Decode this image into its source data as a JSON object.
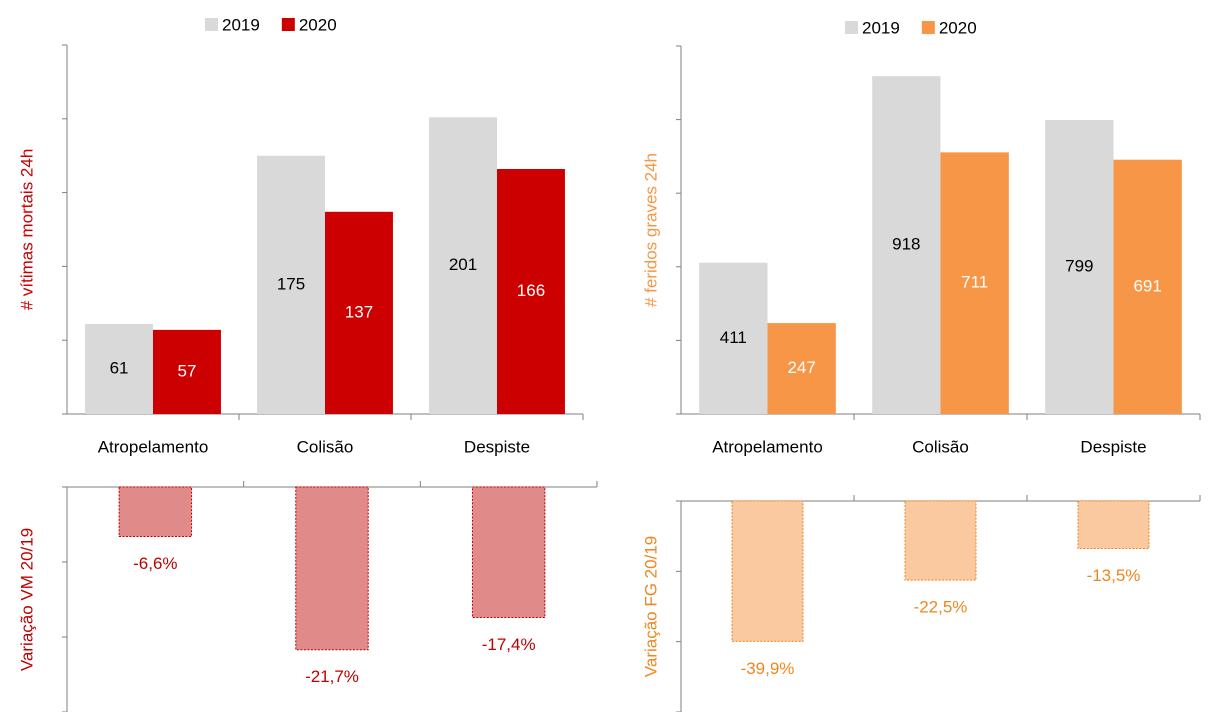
{
  "chart_data": [
    {
      "type": "bar",
      "y_label": "# vítimas mortais 24h",
      "categories": [
        "Atropelamento",
        "Colisão",
        "Despiste"
      ],
      "series": [
        {
          "name": "2019",
          "color": "#d9d9d9",
          "values": [
            61,
            175,
            201
          ]
        },
        {
          "name": "2020",
          "color": "#cc0000",
          "values": [
            57,
            137,
            166
          ]
        }
      ],
      "ylim": [
        0,
        250
      ],
      "yticks": [
        0,
        50,
        100,
        150,
        200,
        250
      ],
      "label_color": "#cc0000"
    },
    {
      "type": "bar",
      "y_label": "# feridos graves 24h",
      "categories": [
        "Atropelamento",
        "Colisão",
        "Despiste"
      ],
      "series": [
        {
          "name": "2019",
          "color": "#d9d9d9",
          "values": [
            411,
            918,
            799
          ]
        },
        {
          "name": "2020",
          "color": "#f79646",
          "values": [
            247,
            711,
            691
          ]
        }
      ],
      "ylim": [
        0,
        1000
      ],
      "yticks": [
        0,
        200,
        400,
        600,
        800,
        1000
      ],
      "label_color": "#f79646"
    },
    {
      "type": "bar",
      "y_label": "Variação VM 20/19",
      "values": [
        -6.6,
        -21.7,
        -17.4
      ],
      "value_labels": [
        "-6,6%",
        "-21,7%",
        "-17,4%"
      ],
      "color": "#e08a8a",
      "border_color": "#c00000",
      "label_color": "#c00000",
      "ylim": [
        -30,
        0
      ],
      "yticks": [
        -30,
        -20,
        -10,
        0
      ]
    },
    {
      "type": "bar",
      "y_label": "Variação FG 20/19",
      "values": [
        -39.9,
        -22.5,
        -13.5
      ],
      "value_labels": [
        "-39,9%",
        "-22,5%",
        "-13,5%"
      ],
      "color": "#fac9a0",
      "border_color": "#f0861e",
      "label_color": "#f0861e",
      "ylim": [
        -60,
        0
      ],
      "yticks": [
        -60,
        -40,
        -20,
        0
      ]
    }
  ]
}
